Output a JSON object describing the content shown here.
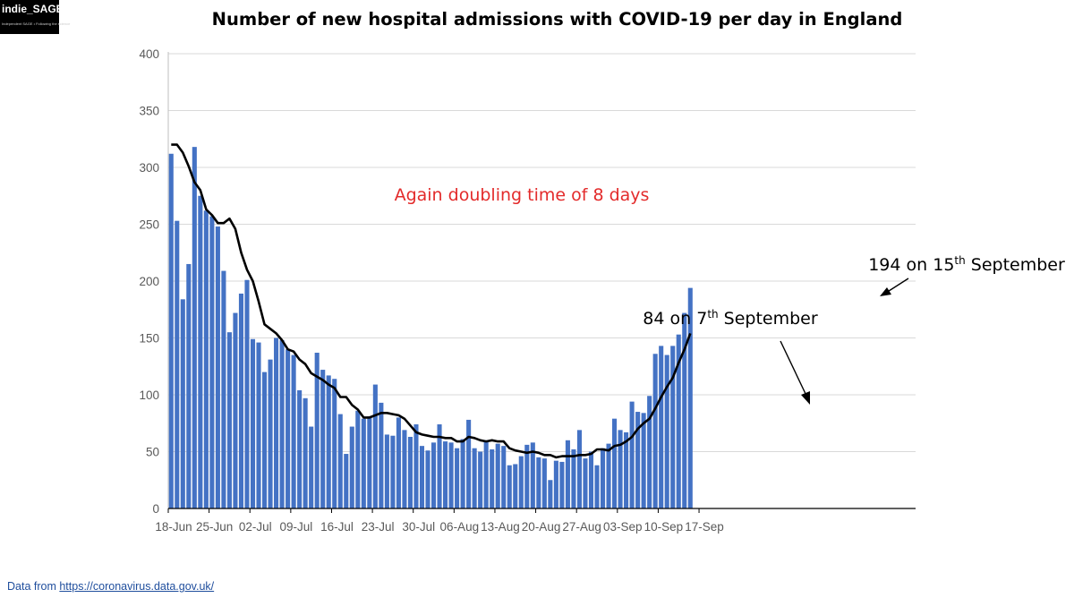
{
  "logo": {
    "name": "indie_SAGE",
    "tagline": "Independent SAGE • Following the science"
  },
  "source": {
    "label": "Data from ",
    "url": "https://coronavirus.data.gov.uk/"
  },
  "colors": {
    "bar": "#4472c4",
    "average_line": "#000000",
    "annotation_red": "#e32b2b",
    "grid": "#d9d9d9"
  },
  "chart_data": {
    "type": "bar",
    "title": "Number of new hospital admissions with COVID-19 per day in England",
    "xlabel": "",
    "ylabel": "",
    "ylim": [
      0,
      400
    ],
    "yticks": [
      0,
      50,
      100,
      150,
      200,
      250,
      300,
      350,
      400
    ],
    "grid": true,
    "x_start": "18-Jun",
    "xticks": [
      "18-Jun",
      "25-Jun",
      "02-Jul",
      "09-Jul",
      "16-Jul",
      "23-Jul",
      "30-Jul",
      "06-Aug",
      "13-Aug",
      "20-Aug",
      "27-Aug",
      "03-Sep",
      "10-Sep",
      "17-Sep"
    ],
    "series": [
      {
        "kind": "bar",
        "values": [
          312,
          253,
          184,
          215,
          318,
          275,
          262,
          257,
          248,
          209,
          155,
          172,
          189,
          201,
          149,
          146,
          120,
          131,
          150,
          148,
          140,
          135,
          104,
          97,
          72,
          137,
          122,
          117,
          114,
          83,
          48,
          72,
          86,
          79,
          81,
          109,
          93,
          65,
          64,
          80,
          69,
          63,
          74,
          55,
          51,
          58,
          74,
          59,
          58,
          53,
          61,
          78,
          53,
          50,
          60,
          52,
          57,
          55,
          38,
          39,
          46,
          56,
          58,
          45,
          44,
          25,
          42,
          41,
          60,
          52,
          69,
          44,
          50,
          38,
          53,
          57,
          79,
          69,
          67,
          94,
          85,
          84,
          99,
          136,
          143,
          135,
          143,
          153,
          172,
          194
        ]
      },
      {
        "kind": "line",
        "values": [
          320,
          320,
          313,
          301,
          287,
          280,
          263,
          258,
          251,
          251,
          255,
          246,
          225,
          210,
          200,
          182,
          162,
          158,
          154,
          148,
          140,
          138,
          131,
          127,
          119,
          116,
          113,
          109,
          106,
          98,
          98,
          91,
          87,
          80,
          80,
          82,
          84,
          84,
          83,
          82,
          79,
          73,
          67,
          65,
          64,
          63,
          63,
          62,
          62,
          59,
          59,
          63,
          62,
          60,
          59,
          60,
          59,
          59,
          53,
          51,
          50,
          49,
          50,
          49,
          47,
          47,
          45,
          46,
          46,
          46,
          47,
          47,
          48,
          52,
          52,
          51,
          55,
          56,
          59,
          63,
          70,
          75,
          79,
          88,
          98,
          107,
          115,
          128,
          140,
          154
        ]
      }
    ],
    "annotations": [
      {
        "text": "Again doubling time of 8 days",
        "color": "#e32b2b"
      },
      {
        "num": "84 on 7",
        "sup": "th",
        "rest": " September"
      },
      {
        "num": "194 on 15",
        "sup": "th",
        "rest": " September"
      }
    ]
  }
}
